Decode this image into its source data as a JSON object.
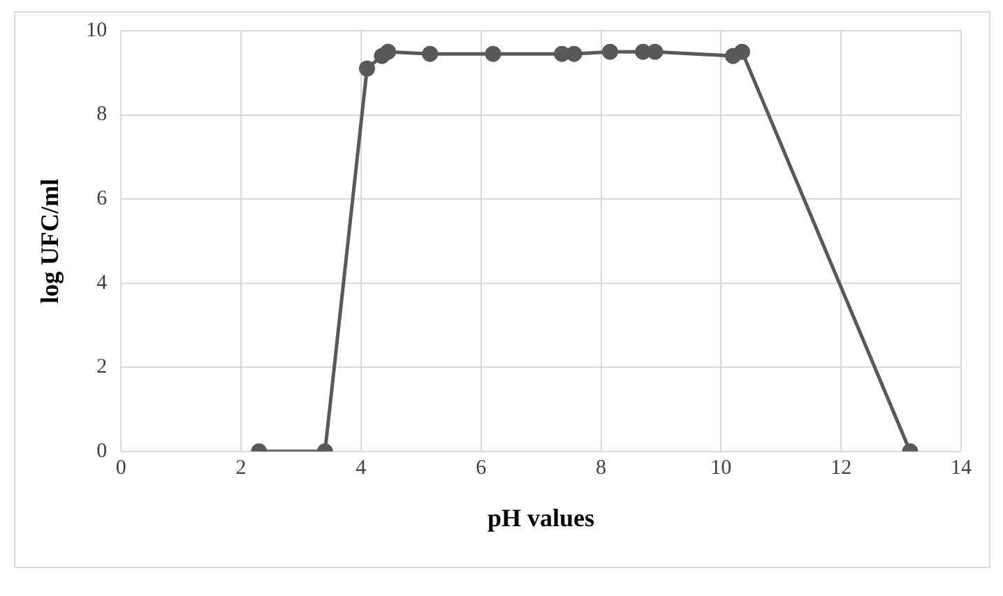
{
  "chart_data": {
    "type": "line",
    "xlabel": "pH values",
    "ylabel": "log UFC/ml",
    "x": [
      2.3,
      3.4,
      4.1,
      4.35,
      4.45,
      5.15,
      6.2,
      7.35,
      7.55,
      8.15,
      8.7,
      8.9,
      10.2,
      10.35,
      13.15
    ],
    "series": [
      {
        "color": "#595959",
        "values": [
          0,
          0,
          9.1,
          9.4,
          9.5,
          9.45,
          9.45,
          9.45,
          9.45,
          9.5,
          9.5,
          9.5,
          9.4,
          9.5,
          0
        ]
      }
    ],
    "xlim": [
      0,
      14
    ],
    "xticks": [
      0,
      2,
      4,
      6,
      8,
      10,
      12,
      14
    ],
    "ylim": [
      0,
      10
    ],
    "yticks": [
      0,
      2,
      4,
      6,
      8,
      10
    ],
    "grid": true,
    "legend": false,
    "marker": "circle",
    "line_style": "solid"
  }
}
